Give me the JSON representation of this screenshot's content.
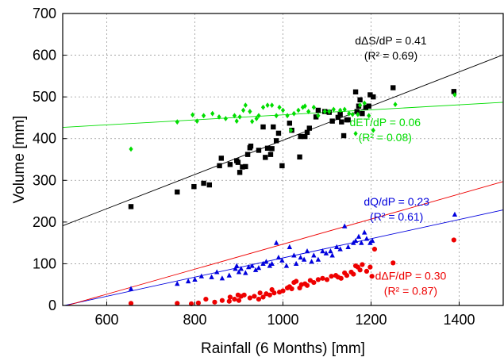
{
  "chart_data": {
    "type": "scatter",
    "title": "",
    "xlabel": "Rainfall (6 Months) [mm]",
    "ylabel": "Volume [mm]",
    "xlim": [
      500,
      1500
    ],
    "ylim": [
      0,
      700
    ],
    "xticks": [
      600,
      800,
      1000,
      1200,
      1400
    ],
    "yticks": [
      0,
      100,
      200,
      300,
      400,
      500,
      600,
      700
    ],
    "grid": true,
    "series": [
      {
        "key": "dS",
        "marker": "square",
        "color": "#000000",
        "trend": {
          "slope": 0.41,
          "intercept": -14
        },
        "annotation": {
          "slope_text": "dΔS/dP = 0.41",
          "r2_text": "(R² = 0.69)",
          "x": 1245,
          "y": 626
        },
        "points": [
          [
            655,
            237
          ],
          [
            760,
            272
          ],
          [
            798,
            285
          ],
          [
            820,
            293
          ],
          [
            833,
            289
          ],
          [
            856,
            335
          ],
          [
            860,
            353
          ],
          [
            880,
            338
          ],
          [
            895,
            347
          ],
          [
            898,
            343
          ],
          [
            902,
            319
          ],
          [
            908,
            332
          ],
          [
            915,
            333
          ],
          [
            920,
            362
          ],
          [
            925,
            378
          ],
          [
            927,
            382
          ],
          [
            945,
            372
          ],
          [
            955,
            428
          ],
          [
            960,
            355
          ],
          [
            965,
            377
          ],
          [
            972,
            362
          ],
          [
            975,
            376
          ],
          [
            978,
            428
          ],
          [
            985,
            395
          ],
          [
            990,
            413
          ],
          [
            998,
            335
          ],
          [
            1015,
            437
          ],
          [
            1020,
            420
          ],
          [
            1038,
            356
          ],
          [
            1040,
            405
          ],
          [
            1050,
            405
          ],
          [
            1055,
            415
          ],
          [
            1060,
            425
          ],
          [
            1075,
            452
          ],
          [
            1080,
            468
          ],
          [
            1095,
            465
          ],
          [
            1105,
            463
          ],
          [
            1112,
            442
          ],
          [
            1125,
            451
          ],
          [
            1130,
            458
          ],
          [
            1133,
            440
          ],
          [
            1138,
            407
          ],
          [
            1145,
            445
          ],
          [
            1148,
            445
          ],
          [
            1165,
            512
          ],
          [
            1168,
            465
          ],
          [
            1172,
            478
          ],
          [
            1175,
            493
          ],
          [
            1180,
            460
          ],
          [
            1188,
            475
          ],
          [
            1195,
            478
          ],
          [
            1198,
            505
          ],
          [
            1205,
            500
          ],
          [
            1250,
            522
          ],
          [
            1388,
            513
          ]
        ]
      },
      {
        "key": "dET",
        "marker": "diamond",
        "color": "#00dd00",
        "trend": {
          "slope": 0.06,
          "intercept": 397
        },
        "annotation": {
          "slope_text": "dET/dP = 0.06",
          "r2_text": "(R² = 0.08)",
          "x": 1232,
          "y": 430
        },
        "points": [
          [
            655,
            375
          ],
          [
            760,
            440
          ],
          [
            795,
            457
          ],
          [
            805,
            442
          ],
          [
            820,
            455
          ],
          [
            840,
            460
          ],
          [
            855,
            452
          ],
          [
            870,
            448
          ],
          [
            890,
            455
          ],
          [
            895,
            442
          ],
          [
            902,
            452
          ],
          [
            910,
            468
          ],
          [
            915,
            480
          ],
          [
            925,
            465
          ],
          [
            930,
            441
          ],
          [
            940,
            448
          ],
          [
            945,
            455
          ],
          [
            955,
            475
          ],
          [
            965,
            480
          ],
          [
            975,
            480
          ],
          [
            985,
            455
          ],
          [
            992,
            475
          ],
          [
            1000,
            468
          ],
          [
            1010,
            455
          ],
          [
            1018,
            420
          ],
          [
            1025,
            460
          ],
          [
            1035,
            468
          ],
          [
            1045,
            475
          ],
          [
            1050,
            478
          ],
          [
            1058,
            465
          ],
          [
            1070,
            475
          ],
          [
            1080,
            455
          ],
          [
            1095,
            465
          ],
          [
            1105,
            465
          ],
          [
            1115,
            470
          ],
          [
            1130,
            468
          ],
          [
            1140,
            470
          ],
          [
            1150,
            460
          ],
          [
            1158,
            458
          ],
          [
            1165,
            412
          ],
          [
            1170,
            458
          ],
          [
            1175,
            480
          ],
          [
            1185,
            485
          ],
          [
            1195,
            455
          ],
          [
            1205,
            420
          ],
          [
            1255,
            482
          ],
          [
            1390,
            505
          ]
        ]
      },
      {
        "key": "dQ",
        "marker": "triangle",
        "color": "#0000dd",
        "trend": {
          "slope": 0.23,
          "intercept": -116
        },
        "annotation": {
          "slope_text": "dQ/dP = 0.23",
          "r2_text": "(R² = 0.61)",
          "x": 1258,
          "y": 240
        },
        "points": [
          [
            655,
            40
          ],
          [
            760,
            52
          ],
          [
            785,
            58
          ],
          [
            800,
            62
          ],
          [
            815,
            70
          ],
          [
            838,
            68
          ],
          [
            850,
            80
          ],
          [
            862,
            65
          ],
          [
            878,
            72
          ],
          [
            892,
            88
          ],
          [
            895,
            95
          ],
          [
            900,
            80
          ],
          [
            905,
            88
          ],
          [
            915,
            78
          ],
          [
            922,
            92
          ],
          [
            930,
            95
          ],
          [
            938,
            85
          ],
          [
            945,
            90
          ],
          [
            955,
            100
          ],
          [
            962,
            105
          ],
          [
            970,
            95
          ],
          [
            975,
            100
          ],
          [
            985,
            150
          ],
          [
            990,
            115
          ],
          [
            998,
            108
          ],
          [
            1008,
            95
          ],
          [
            1015,
            140
          ],
          [
            1025,
            120
          ],
          [
            1030,
            100
          ],
          [
            1040,
            115
          ],
          [
            1048,
            110
          ],
          [
            1055,
            130
          ],
          [
            1065,
            105
          ],
          [
            1070,
            120
          ],
          [
            1080,
            110
          ],
          [
            1090,
            130
          ],
          [
            1098,
            125
          ],
          [
            1108,
            130
          ],
          [
            1112,
            120
          ],
          [
            1122,
            140
          ],
          [
            1130,
            135
          ],
          [
            1140,
            190
          ],
          [
            1148,
            140
          ],
          [
            1160,
            150
          ],
          [
            1165,
            155
          ],
          [
            1172,
            165
          ],
          [
            1178,
            150
          ],
          [
            1185,
            175
          ],
          [
            1190,
            160
          ],
          [
            1198,
            150
          ],
          [
            1203,
            155
          ],
          [
            1390,
            218
          ]
        ]
      },
      {
        "key": "dF",
        "marker": "circle",
        "color": "#ee0000",
        "trend": {
          "slope": 0.3,
          "intercept": -153
        },
        "annotation": {
          "slope_text": "dΔF/dP = 0.30",
          "r2_text": "(R² = 0.87)",
          "x": 1290,
          "y": 62
        },
        "points": [
          [
            655,
            5
          ],
          [
            760,
            5
          ],
          [
            792,
            4
          ],
          [
            808,
            6
          ],
          [
            825,
            15
          ],
          [
            845,
            8
          ],
          [
            862,
            12
          ],
          [
            878,
            10
          ],
          [
            880,
            20
          ],
          [
            890,
            15
          ],
          [
            898,
            25
          ],
          [
            900,
            12
          ],
          [
            905,
            22
          ],
          [
            912,
            25
          ],
          [
            925,
            18
          ],
          [
            935,
            22
          ],
          [
            945,
            15
          ],
          [
            948,
            30
          ],
          [
            955,
            20
          ],
          [
            962,
            28
          ],
          [
            970,
            25
          ],
          [
            975,
            38
          ],
          [
            980,
            30
          ],
          [
            992,
            32
          ],
          [
            1000,
            35
          ],
          [
            1010,
            42
          ],
          [
            1015,
            45
          ],
          [
            1020,
            40
          ],
          [
            1025,
            55
          ],
          [
            1030,
            58
          ],
          [
            1038,
            42
          ],
          [
            1042,
            50
          ],
          [
            1050,
            52
          ],
          [
            1055,
            48
          ],
          [
            1062,
            60
          ],
          [
            1070,
            55
          ],
          [
            1080,
            62
          ],
          [
            1090,
            65
          ],
          [
            1100,
            62
          ],
          [
            1110,
            70
          ],
          [
            1120,
            72
          ],
          [
            1125,
            68
          ],
          [
            1132,
            65
          ],
          [
            1140,
            78
          ],
          [
            1145,
            72
          ],
          [
            1155,
            80
          ],
          [
            1160,
            75
          ],
          [
            1165,
            95
          ],
          [
            1170,
            92
          ],
          [
            1175,
            85
          ],
          [
            1180,
            98
          ],
          [
            1190,
            82
          ],
          [
            1198,
            92
          ],
          [
            1202,
            70
          ],
          [
            1208,
            135
          ],
          [
            1250,
            102
          ],
          [
            1388,
            157
          ]
        ]
      }
    ]
  }
}
